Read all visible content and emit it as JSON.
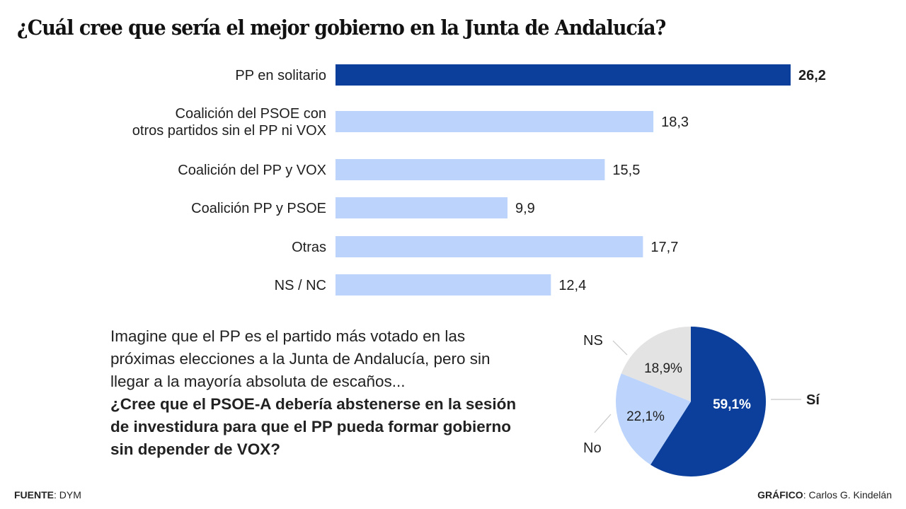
{
  "title": "¿Cuál cree que sería el mejor gobierno en la Junta de Andalucía?",
  "colors": {
    "highlight": "#0b3f9b",
    "bar": "#bcd4fb",
    "pie_si": "#0b3f9b",
    "pie_no": "#bcd4fb",
    "pie_ns": "#e3e3e3",
    "text": "#1e1e1e"
  },
  "question": {
    "intro": "Imagine que el PP es el partido más votado en las próximas elecciones a la Junta de Andalucía, pero sin llegar a la mayoría absoluta de escaños...",
    "ask": "¿Cree que el PSOE-A debería abstenerse en la sesión de investidura para que el PP pueda formar gobierno sin depender de VOX?"
  },
  "footer": {
    "source_label": "FUENTE",
    "source_value": ": DYM",
    "credit_label": "GRÁFICO",
    "credit_value": ": Carlos G. Kindelán"
  },
  "chart_data": [
    {
      "type": "bar",
      "orientation": "horizontal",
      "title": "¿Cuál cree que sería el mejor gobierno en la Junta de Andalucía?",
      "categories": [
        [
          "PP en solitario"
        ],
        [
          "Coalición del PSOE con",
          "otros partidos sin el PP ni VOX"
        ],
        [
          "Coalición del PP y VOX"
        ],
        [
          "Coalición PP y PSOE"
        ],
        [
          "Otras"
        ],
        [
          "NS / NC"
        ]
      ],
      "values": [
        26.2,
        18.3,
        15.5,
        9.9,
        17.7,
        12.4
      ],
      "value_labels": [
        "26,2",
        "18,3",
        "15,5",
        "9,9",
        "17,7",
        "12,4"
      ],
      "highlight_index": 0,
      "xlim": [
        0,
        26.2
      ],
      "grid": false,
      "xlabel": "",
      "ylabel": ""
    },
    {
      "type": "pie",
      "title": "¿Cree que el PSOE-A debería abstenerse en la sesión de investidura para que el PP pueda formar gobierno sin depender de VOX?",
      "slices": [
        {
          "label": "Sí",
          "value": 59.1,
          "value_label": "59,1%",
          "color_key": "pie_si"
        },
        {
          "label": "No",
          "value": 22.1,
          "value_label": "22,1%",
          "color_key": "pie_no"
        },
        {
          "label": "NS",
          "value": 18.9,
          "value_label": "18,9%",
          "color_key": "pie_ns"
        }
      ],
      "start": "12 o'clock",
      "direction": "clockwise"
    }
  ]
}
